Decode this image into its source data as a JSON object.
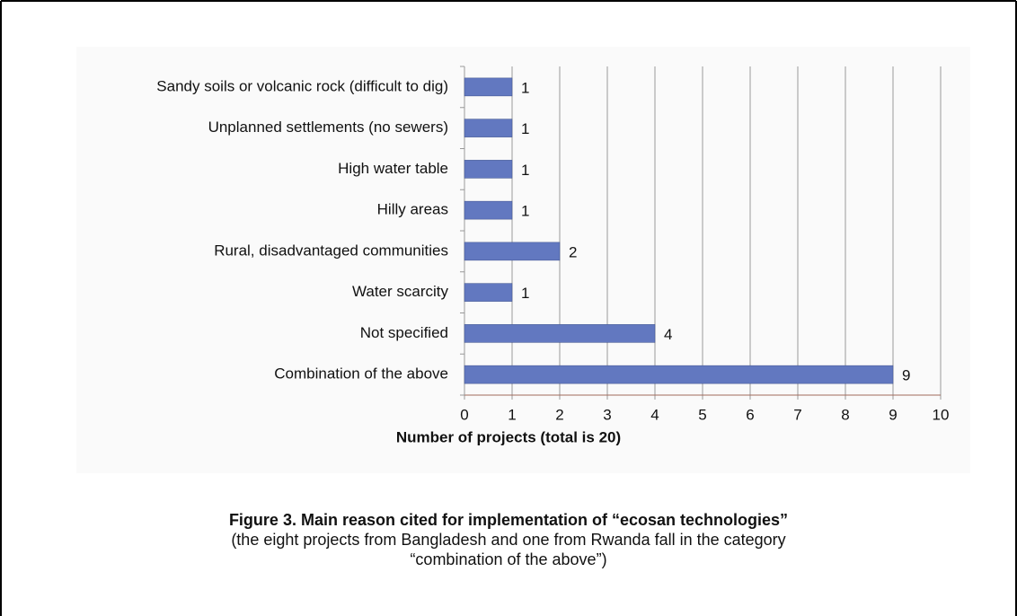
{
  "chart_data": {
    "type": "bar",
    "orientation": "horizontal",
    "categories": [
      "Sandy soils or volcanic rock (difficult to dig)",
      "Unplanned settlements (no sewers)",
      "High water table",
      "Hilly areas",
      "Rural, disadvantaged communities",
      "Water scarcity",
      "Not specified",
      "Combination of the above"
    ],
    "values": [
      1,
      1,
      1,
      1,
      2,
      1,
      4,
      9
    ],
    "color": "#6278c0",
    "xlabel": "Number of projects (total is 20)",
    "xlim": [
      0,
      10
    ],
    "xticks": [
      0,
      1,
      2,
      3,
      4,
      5,
      6,
      7,
      8,
      9,
      10
    ],
    "grid": true
  },
  "caption": {
    "title": "Figure 3. Main reason cited for implementation of “ecosan technologies”",
    "lines": [
      "(the eight projects from Bangladesh and one from Rwanda fall in the category",
      "“combination of the above”)"
    ]
  }
}
